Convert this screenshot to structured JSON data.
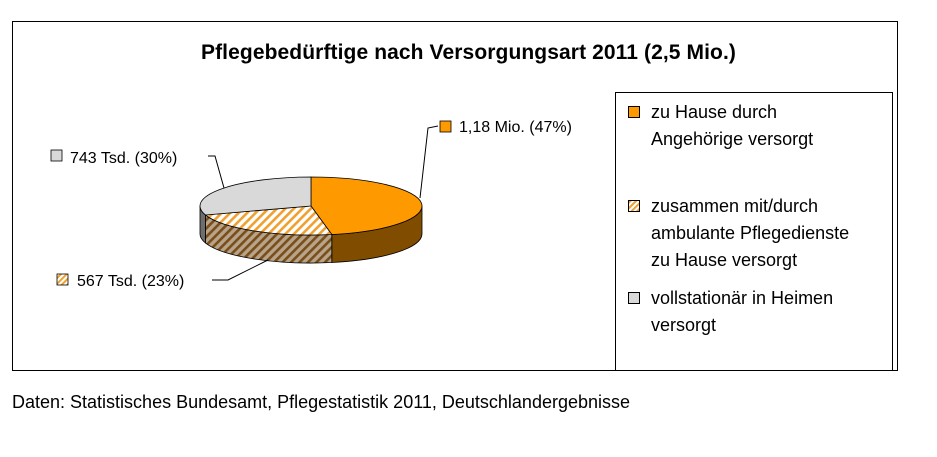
{
  "chart_data": {
    "type": "pie",
    "title": "Pflegebedürftige nach Versorgungsart 2011 (2,5 Mio.)",
    "slices": [
      {
        "name": "zu Hause durch Angehörige versorgt",
        "legend_lines": [
          "zu Hause durch",
          "Angehörige versorgt"
        ],
        "label": "1,18 Mio. (47%)",
        "percent": 47,
        "color": "#ff9900",
        "side_color": "#7f4c00",
        "pattern": "solid"
      },
      {
        "name": "zusammen mit/durch ambulante Pflegedienste zu Hause versorgt",
        "legend_lines": [
          "zusammen mit/durch",
          "ambulante Pflegedienste",
          "zu Hause versorgt"
        ],
        "label": "567 Tsd. (23%)",
        "percent": 23,
        "color": "#f0a030",
        "side_color": "#8a5a1e",
        "pattern": "hatched"
      },
      {
        "name": "vollstationär in Heimen versorgt",
        "legend_lines": [
          "vollstationär in Heimen",
          "versorgt"
        ],
        "label": "743 Tsd. (30%)",
        "percent": 30,
        "color": "#d9d9d9",
        "side_color": "#6d6d6d",
        "pattern": "solid"
      }
    ]
  },
  "footer": {
    "source": "Daten: Statistisches Bundesamt, Pflegestatistik 2011, Deutschlandergebnisse"
  }
}
